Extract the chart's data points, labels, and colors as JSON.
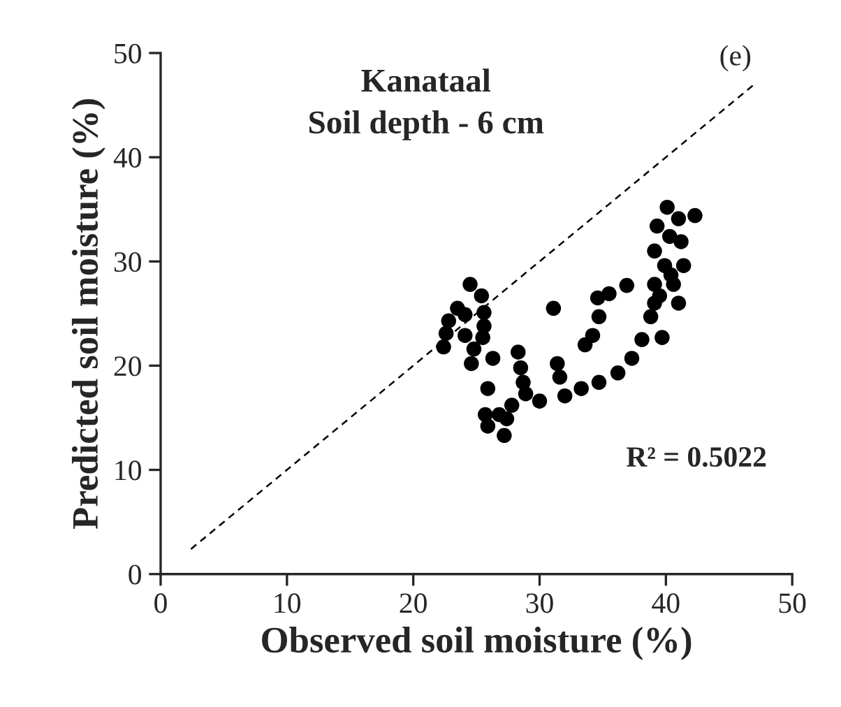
{
  "chart_data": {
    "type": "scatter",
    "title": "Kanataal",
    "subtitle": "Soil depth - 6 cm",
    "xlabel": "Observed soil moisture (%)",
    "ylabel": "Predicted soil moisture (%)",
    "annotations": [
      "R² = 0.5022",
      "(e)"
    ],
    "marker": "circle",
    "grid": false,
    "legend": false,
    "xlim": [
      0,
      50
    ],
    "ylim": [
      0,
      50
    ],
    "xticks": [
      0,
      10,
      20,
      30,
      40,
      50
    ],
    "yticks": [
      0,
      10,
      20,
      30,
      40,
      50
    ],
    "series": [
      {
        "color": "#000000",
        "x": [
          22.6,
          22.4,
          22.8,
          23.5,
          24.1,
          24.5,
          25.4,
          25.6,
          25.6,
          25.5,
          24.8,
          24.6,
          24.1,
          26.3,
          25.9,
          25.7,
          25.9,
          27.2,
          27.4,
          26.8,
          27.8,
          28.3,
          28.5,
          28.7,
          28.9,
          30.0,
          31.1,
          31.4,
          31.6,
          32.0,
          33.3,
          34.7,
          36.2,
          37.3,
          38.1,
          38.8,
          39.1,
          33.6,
          34.2,
          34.7,
          34.6,
          35.5,
          36.9,
          39.7,
          40.1,
          39.3,
          41.0,
          42.3,
          41.2,
          39.1,
          39.9,
          41.4,
          39.1,
          40.6,
          41.0,
          39.5,
          40.3,
          40.4
        ],
        "values": [
          23.1,
          21.8,
          24.3,
          25.5,
          24.9,
          27.8,
          26.7,
          25.1,
          23.8,
          22.7,
          21.6,
          20.2,
          22.9,
          20.7,
          17.8,
          15.3,
          14.2,
          13.3,
          14.9,
          15.3,
          16.2,
          21.3,
          19.8,
          18.4,
          17.3,
          16.6,
          25.5,
          20.2,
          18.9,
          17.1,
          17.8,
          18.4,
          19.3,
          20.7,
          22.5,
          24.7,
          26.0,
          22.0,
          22.9,
          24.7,
          26.5,
          26.9,
          27.7,
          22.7,
          35.2,
          33.4,
          34.1,
          34.4,
          31.9,
          31.0,
          29.6,
          29.6,
          27.8,
          27.8,
          26.0,
          26.7,
          32.4,
          28.7
        ]
      },
      {
        "type": "line",
        "color": "#000000",
        "line_style": "dashed",
        "marker": "none",
        "x": [
          2.4,
          47
        ],
        "values": [
          2.4,
          47
        ]
      }
    ]
  }
}
